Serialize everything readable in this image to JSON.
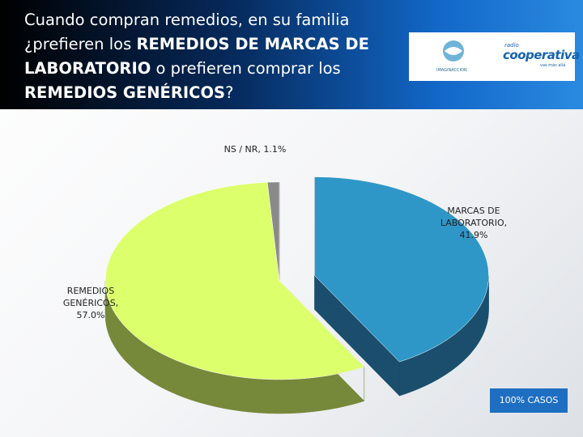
{
  "header": {
    "title_parts": [
      "Cuando compran remedios, en su familia ¿prefieren los ",
      "REMEDIOS DE MARCAS DE LABORATORIO",
      " o prefieren comprar los ",
      "REMEDIOS GENÉRICOS",
      "?"
    ],
    "logos": {
      "left": "IMAGINACCION",
      "right_small": "radio",
      "right": "cooperativa",
      "tagline": "vas más allá"
    }
  },
  "chart_data": {
    "type": "pie",
    "values": [
      41.9,
      57.0,
      1.1
    ],
    "value_labels": [
      "MARCAS DE LABORATORIO, 41.9%",
      "REMEDIOS GENÉRICOS, 57.0%",
      "NS / NR, 1.1%"
    ],
    "colors": [
      "#2f97c8",
      "#dcff6c",
      "#8a8a8a"
    ],
    "side_colors": [
      "#1a4e6c",
      "#76883a",
      "#333333"
    ],
    "exploded": [
      true,
      false,
      false
    ]
  },
  "footnote": "100% CASOS"
}
